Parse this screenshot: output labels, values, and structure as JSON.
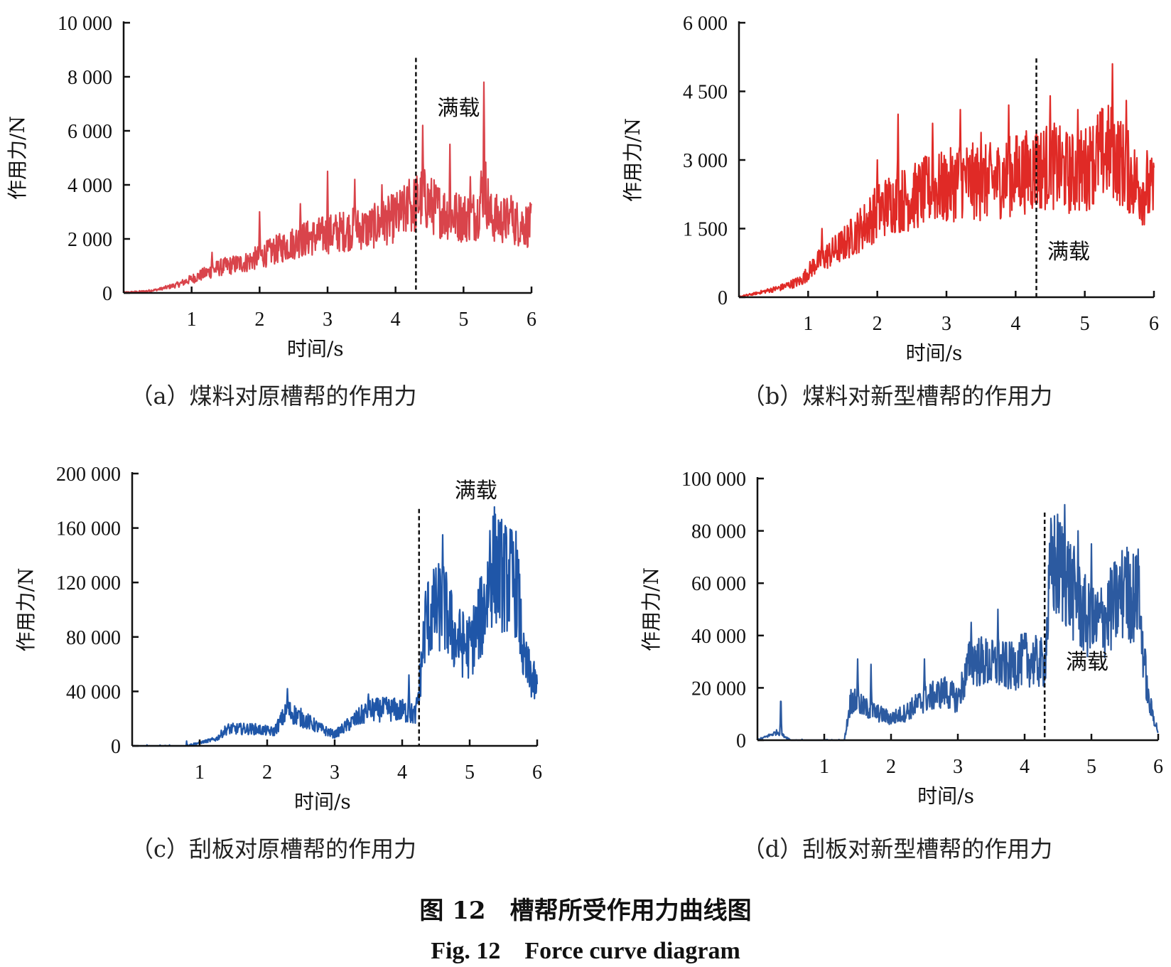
{
  "chart_data": [
    {
      "id": "a",
      "type": "line",
      "caption": "（a）煤料对原槽帮的作用力",
      "xlabel": "时间/s",
      "ylabel": "作用力/N",
      "xlim": [
        0,
        6
      ],
      "ylim": [
        0,
        10000
      ],
      "x_ticks": [
        "1",
        "2",
        "3",
        "4",
        "5",
        "6"
      ],
      "y_ticks": [
        "0",
        "2 000",
        "4 000",
        "6 000",
        "8 000",
        "10 000"
      ],
      "y_tick_values": [
        0,
        2000,
        4000,
        6000,
        8000,
        10000
      ],
      "annotation": "满载",
      "full_load_time": 4.3,
      "color": "#d9444b",
      "series": [
        {
          "x": [
            0,
            0.3,
            0.5,
            0.8,
            1.0,
            1.2,
            1.4,
            1.6,
            1.8,
            2.0,
            2.2,
            2.4,
            2.6,
            2.8,
            3.0,
            3.2,
            3.4,
            3.6,
            3.8,
            4.0,
            4.2,
            4.3,
            4.4,
            4.6,
            4.8,
            5.0,
            5.2,
            5.3,
            5.4,
            5.6,
            5.8,
            6.0
          ],
          "y": [
            0,
            50,
            120,
            300,
            500,
            700,
            900,
            1000,
            1100,
            1300,
            1500,
            1700,
            1900,
            2000,
            2100,
            2200,
            2300,
            2300,
            2500,
            2700,
            3000,
            3200,
            3400,
            3000,
            2800,
            2700,
            2800,
            4000,
            2700,
            2600,
            2500,
            2400
          ],
          "peaks": [
            [
              1.3,
              1500
            ],
            [
              2.0,
              3000
            ],
            [
              2.6,
              3300
            ],
            [
              3.0,
              4500
            ],
            [
              3.4,
              4200
            ],
            [
              3.8,
              4000
            ],
            [
              4.2,
              4200
            ],
            [
              4.4,
              6200
            ],
            [
              4.8,
              5500
            ],
            [
              5.1,
              4300
            ],
            [
              5.3,
              7800
            ],
            [
              5.7,
              3600
            ]
          ]
        }
      ]
    },
    {
      "id": "b",
      "type": "line",
      "caption": "（b）煤料对新型槽帮的作用力",
      "xlabel": "时间/s",
      "ylabel": "作用力/N",
      "xlim": [
        0,
        6
      ],
      "ylim": [
        0,
        6000
      ],
      "x_ticks": [
        "1",
        "2",
        "3",
        "4",
        "5",
        "6"
      ],
      "y_ticks": [
        "0",
        "1 500",
        "3 000",
        "4 500",
        "6 000"
      ],
      "y_tick_values": [
        0,
        1500,
        3000,
        4500,
        6000
      ],
      "annotation": "满载",
      "full_load_time": 4.3,
      "color": "#e02a26",
      "series": [
        {
          "x": [
            0,
            0.3,
            0.6,
            0.9,
            1.1,
            1.3,
            1.5,
            1.8,
            2.0,
            2.2,
            2.5,
            2.8,
            3.0,
            3.2,
            3.5,
            3.8,
            4.0,
            4.3,
            4.5,
            4.8,
            5.0,
            5.2,
            5.4,
            5.6,
            5.8,
            6.0
          ],
          "y": [
            0,
            100,
            200,
            350,
            700,
            900,
            1100,
            1500,
            1800,
            2000,
            2100,
            2300,
            2300,
            2500,
            2400,
            2500,
            2600,
            2700,
            2800,
            2600,
            2700,
            3000,
            3100,
            2700,
            2300,
            2200
          ],
          "peaks": [
            [
              1.2,
              1500
            ],
            [
              2.0,
              3000
            ],
            [
              2.3,
              4000
            ],
            [
              2.8,
              3800
            ],
            [
              3.2,
              4100
            ],
            [
              3.5,
              3600
            ],
            [
              3.9,
              4200
            ],
            [
              4.3,
              3600
            ],
            [
              4.5,
              4400
            ],
            [
              4.9,
              4100
            ],
            [
              5.1,
              3400
            ],
            [
              5.4,
              5100
            ],
            [
              5.6,
              4300
            ],
            [
              5.9,
              3200
            ]
          ]
        }
      ]
    },
    {
      "id": "c",
      "type": "line",
      "caption": "（c）刮板对原槽帮的作用力",
      "xlabel": "时间/s",
      "ylabel": "作用力/N",
      "xlim": [
        0,
        6
      ],
      "ylim": [
        0,
        200000
      ],
      "x_ticks": [
        "1",
        "2",
        "3",
        "4",
        "5",
        "6"
      ],
      "y_ticks": [
        "0",
        "40 000",
        "80 000",
        "120 000",
        "160 000",
        "200 000"
      ],
      "y_tick_values": [
        0,
        40000,
        80000,
        120000,
        160000,
        200000
      ],
      "annotation": "满载",
      "full_load_time": 4.25,
      "color": "#1f56a8",
      "series": [
        {
          "x": [
            0,
            0.8,
            1.25,
            1.4,
            1.8,
            2.1,
            2.3,
            2.5,
            2.8,
            3.0,
            3.2,
            3.5,
            3.8,
            4.0,
            4.2,
            4.25,
            4.35,
            4.6,
            4.8,
            5.0,
            5.2,
            5.35,
            5.5,
            5.7,
            5.8,
            6.0
          ],
          "y": [
            0,
            0,
            5000,
            12000,
            12000,
            10000,
            25000,
            20000,
            12000,
            8000,
            15000,
            25000,
            26000,
            25000,
            22000,
            40000,
            90000,
            100000,
            75000,
            70000,
            95000,
            130000,
            120000,
            115000,
            60000,
            40000
          ],
          "peaks": [
            [
              0.8,
              7000
            ],
            [
              2.3,
              42000
            ],
            [
              3.5,
              38000
            ],
            [
              4.1,
              52000
            ],
            [
              4.6,
              155000
            ],
            [
              5.3,
              158000
            ],
            [
              5.6,
              150000
            ],
            [
              5.9,
              62000
            ]
          ]
        }
      ]
    },
    {
      "id": "d",
      "type": "line",
      "caption": "（d）刮板对新型槽帮的作用力",
      "xlabel": "时间/s",
      "ylabel": "作用力/N",
      "xlim": [
        0,
        6
      ],
      "ylim": [
        0,
        100000
      ],
      "x_ticks": [
        "1",
        "2",
        "3",
        "4",
        "5",
        "6"
      ],
      "y_ticks": [
        "0",
        "20 000",
        "40 000",
        "60 000",
        "80 000",
        "100 000"
      ],
      "y_tick_values": [
        0,
        20000,
        40000,
        60000,
        80000,
        100000
      ],
      "annotation": "满载",
      "full_load_time": 4.3,
      "color": "#2c5aa0",
      "series": [
        {
          "x": [
            0,
            0.3,
            0.5,
            1.3,
            1.4,
            1.6,
            1.8,
            2.0,
            2.2,
            2.5,
            2.8,
            3.0,
            3.2,
            3.5,
            3.8,
            4.0,
            4.3,
            4.4,
            4.6,
            4.8,
            5.0,
            5.2,
            5.5,
            5.7,
            5.85,
            6.0
          ],
          "y": [
            0,
            3000,
            0,
            0,
            15000,
            12000,
            10000,
            8000,
            10000,
            15000,
            18000,
            15000,
            30000,
            28000,
            27000,
            30000,
            28000,
            65000,
            62000,
            50000,
            42000,
            45000,
            55000,
            52000,
            15000,
            3000
          ],
          "peaks": [
            [
              0.35,
              19000
            ],
            [
              1.5,
              31000
            ],
            [
              1.7,
              29000
            ],
            [
              2.5,
              31000
            ],
            [
              3.2,
              45000
            ],
            [
              3.6,
              50000
            ],
            [
              4.0,
              40000
            ],
            [
              4.6,
              90000
            ],
            [
              4.8,
              80000
            ],
            [
              5.0,
              75000
            ],
            [
              5.5,
              70000
            ],
            [
              5.7,
              73000
            ]
          ]
        }
      ]
    }
  ],
  "figure": {
    "title_cn": "图 12　槽帮所受作用力曲线图",
    "title_en": "Fig. 12　Force curve diagram"
  }
}
